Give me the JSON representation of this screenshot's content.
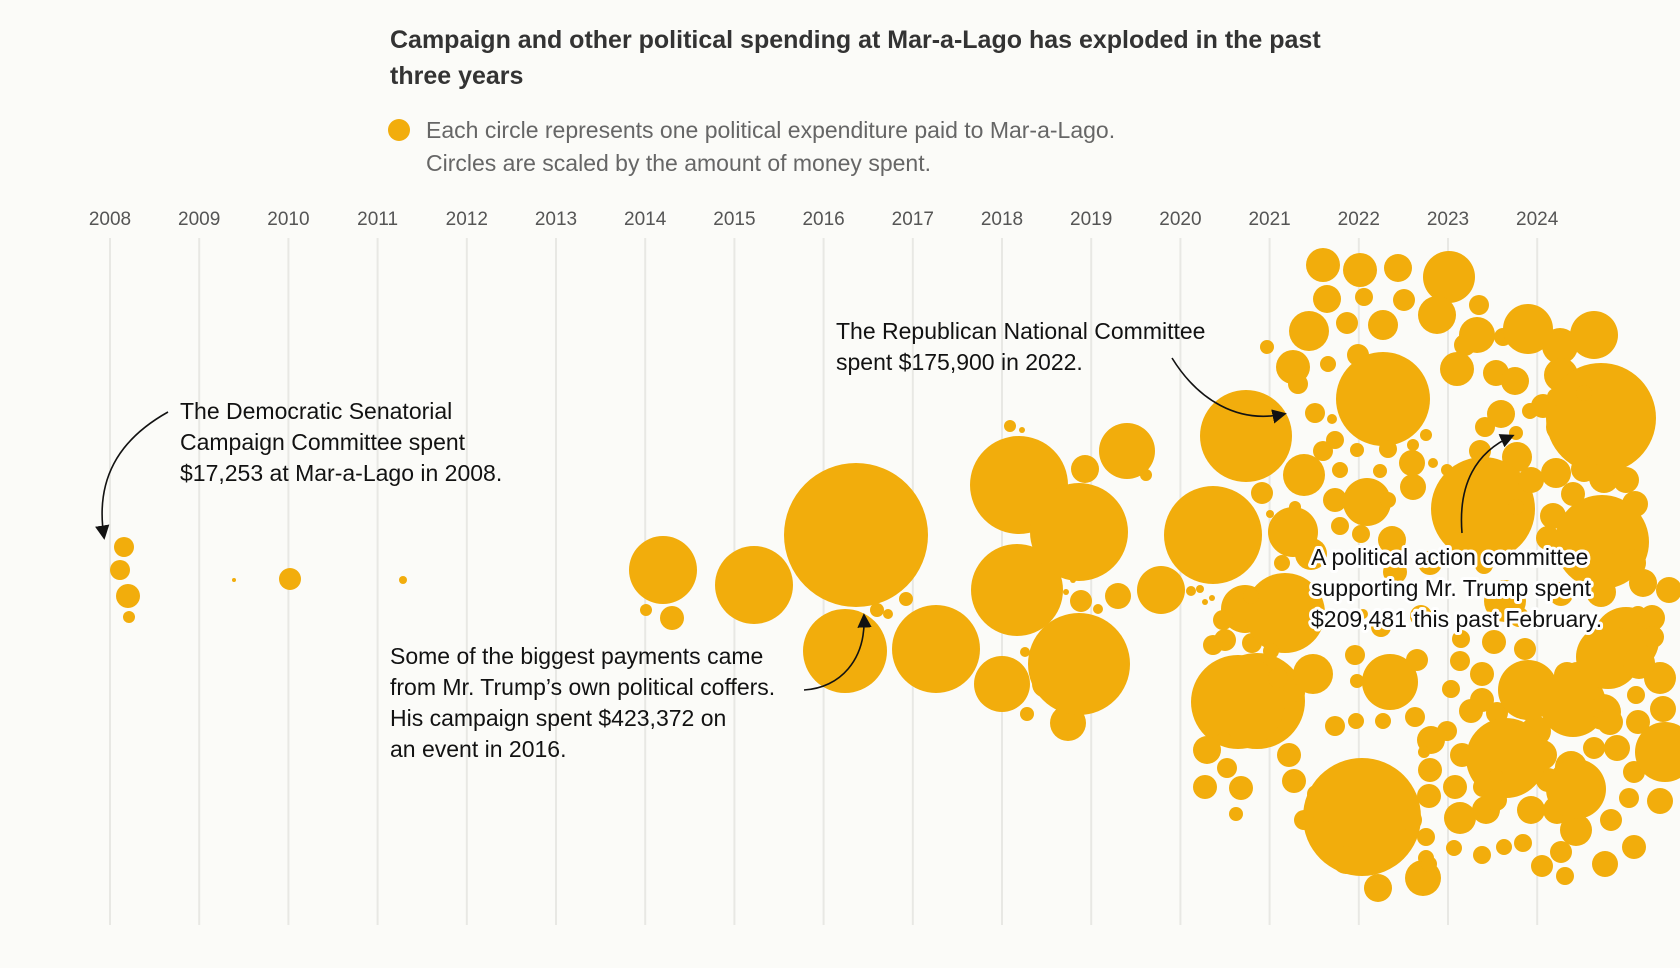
{
  "title": "Campaign and other political spending at Mar-a-Lago has exploded in the past three years",
  "legend": {
    "line1": "Each circle represents one political expenditure paid to Mar-a-Lago.",
    "line2": "Circles are scaled by the amount of money spent."
  },
  "colors": {
    "bubble": "#f2ad0c",
    "gridline": "#e8e8e4",
    "text": "#121212"
  },
  "chart_data": {
    "type": "bubble-beeswarm",
    "x_axis": {
      "type": "date",
      "range": [
        "2008",
        "2024"
      ],
      "ticks": [
        "2008",
        "2009",
        "2010",
        "2011",
        "2012",
        "2013",
        "2014",
        "2015",
        "2016",
        "2017",
        "2018",
        "2019",
        "2020",
        "2021",
        "2022",
        "2023",
        "2024"
      ]
    },
    "size_encoding": "amount of money spent",
    "highlighted_expenditures": [
      {
        "payer": "The Democratic Senatorial Campaign Committee",
        "amount": 17253,
        "year": 2008
      },
      {
        "payer": "Mr. Trump's campaign",
        "amount": 423372,
        "year": 2016
      },
      {
        "payer": "The Republican National Committee",
        "amount": 175900,
        "year": 2022
      },
      {
        "payer": "A political action committee supporting Mr. Trump",
        "amount": 209481,
        "year": 2024
      }
    ],
    "annotations": [
      {
        "id": "dscc",
        "lines": [
          "The Democratic Senatorial",
          "Campaign Committee spent",
          "$17,253 at Mar-a-Lago in 2008."
        ]
      },
      {
        "id": "trump2016",
        "lines": [
          "Some of the biggest payments came",
          "from Mr. Trump’s own political coffers.",
          "His campaign spent $423,372 on",
          "an event in 2016."
        ]
      },
      {
        "id": "rnc",
        "lines": [
          "The Republican National Committee",
          "spent $175,900 in 2022."
        ]
      },
      {
        "id": "pac",
        "lines": [
          "A political action committee",
          "supporting Mr. Trump spent",
          "$209,481 this past February."
        ]
      }
    ]
  }
}
